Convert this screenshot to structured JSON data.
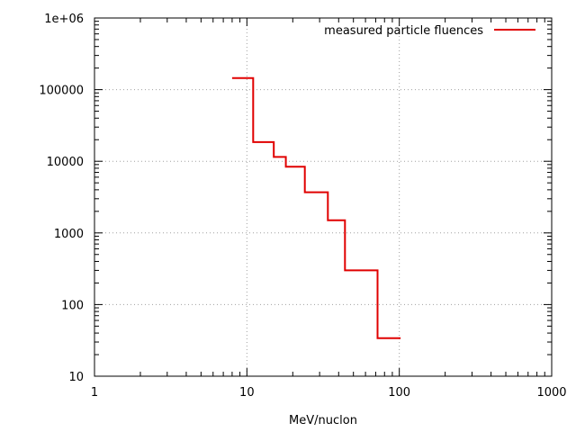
{
  "chart_data": {
    "type": "line",
    "step": true,
    "title": "",
    "xlabel": "MeV/nuclon",
    "ylabel": "",
    "x_scale": "log",
    "y_scale": "log",
    "xlim": [
      1,
      1000
    ],
    "ylim": [
      10,
      1000000
    ],
    "x_ticks": [
      {
        "value": 1,
        "label": "1"
      },
      {
        "value": 10,
        "label": "10"
      },
      {
        "value": 100,
        "label": "100"
      },
      {
        "value": 1000,
        "label": "1000"
      }
    ],
    "y_ticks": [
      {
        "value": 10,
        "label": "10"
      },
      {
        "value": 100,
        "label": "100"
      },
      {
        "value": 1000,
        "label": "1000"
      },
      {
        "value": 10000,
        "label": "10000"
      },
      {
        "value": 100000,
        "label": "100000"
      },
      {
        "value": 1000000,
        "label": "1e+06"
      }
    ],
    "grid": true,
    "legend_position": "top-right",
    "series": [
      {
        "name": "measured particle fluences",
        "color": "#e00000",
        "x": [
          8,
          11,
          15,
          18,
          24,
          34,
          44,
          72,
          102
        ],
        "y": [
          145000,
          18500,
          11500,
          8400,
          3700,
          1500,
          300,
          34,
          34
        ]
      }
    ]
  }
}
